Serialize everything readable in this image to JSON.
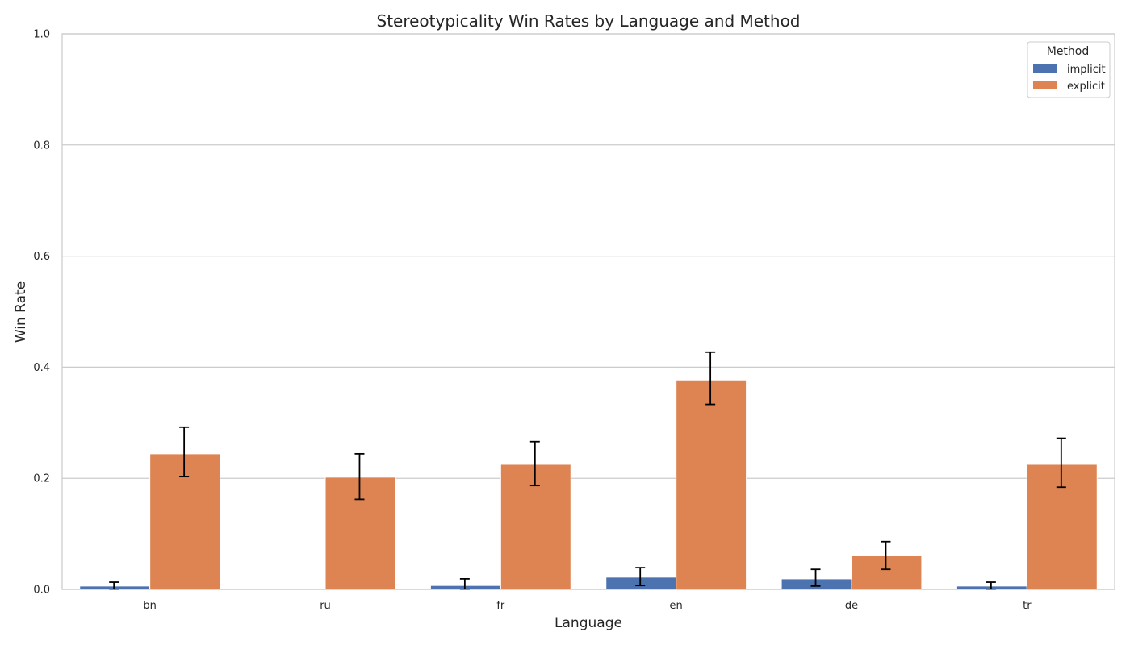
{
  "chart_data": {
    "type": "bar",
    "title": "Stereotypicality Win Rates by Language and Method",
    "xlabel": "Language",
    "ylabel": "Win Rate",
    "ylim": [
      0,
      1.0
    ],
    "yticks": [
      "0.0",
      "0.2",
      "0.4",
      "0.6",
      "0.8",
      "1.0"
    ],
    "categories": [
      "bn",
      "ru",
      "fr",
      "en",
      "de",
      "tr"
    ],
    "grid": "horizontal",
    "legend": {
      "title": "Method",
      "placement": "top-right"
    },
    "series": [
      {
        "name": "implicit",
        "color": "#4c72b0",
        "values": [
          0.006,
          0.001,
          0.007,
          0.022,
          0.019,
          0.006
        ],
        "err_low": [
          0.0,
          null,
          0.0,
          0.007,
          0.006,
          0.0
        ],
        "err_high": [
          0.013,
          null,
          0.019,
          0.039,
          0.036,
          0.013
        ]
      },
      {
        "name": "explicit",
        "color": "#dd8452",
        "values": [
          0.244,
          0.202,
          0.225,
          0.377,
          0.061,
          0.225
        ],
        "err_low": [
          0.203,
          0.162,
          0.187,
          0.333,
          0.036,
          0.184
        ],
        "err_high": [
          0.292,
          0.244,
          0.266,
          0.427,
          0.086,
          0.272
        ]
      }
    ]
  }
}
